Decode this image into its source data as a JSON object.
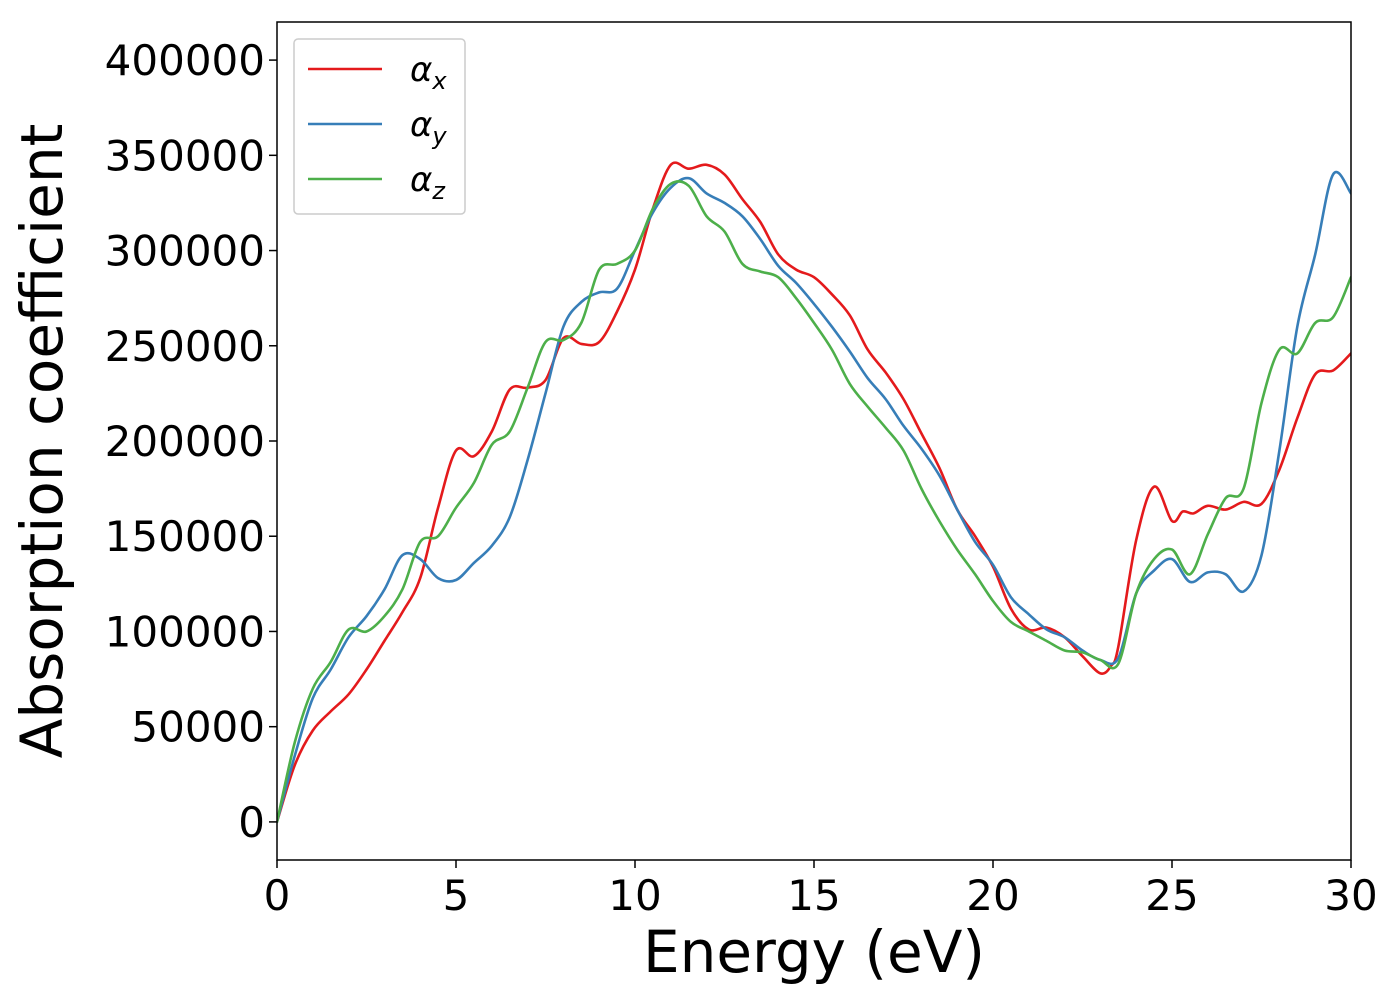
{
  "chart_data": {
    "type": "line",
    "title": "",
    "xlabel": "Energy (eV)",
    "ylabel": "Absorption coefficient",
    "xlim": [
      0,
      30
    ],
    "ylim": [
      -20000,
      420000
    ],
    "xticks": [
      0,
      5,
      10,
      15,
      20,
      25,
      30
    ],
    "yticks": [
      0,
      50000,
      100000,
      150000,
      200000,
      250000,
      300000,
      350000,
      400000
    ],
    "grid": false,
    "legend_position": "top-left",
    "series": [
      {
        "name": "αx",
        "legend_symbol": "α",
        "legend_subscript": "x",
        "color": "#e41a1c",
        "x": [
          0,
          0.5,
          1,
          1.5,
          2,
          2.5,
          3,
          3.5,
          4,
          4.5,
          5,
          5.5,
          6,
          6.5,
          7,
          7.5,
          8,
          8.5,
          9,
          9.5,
          10,
          10.5,
          11,
          11.5,
          12,
          12.5,
          13,
          13.5,
          14,
          14.5,
          15,
          15.5,
          16,
          16.5,
          17,
          17.5,
          18,
          18.5,
          19,
          19.5,
          20,
          20.5,
          21,
          21.5,
          22,
          22.5,
          23,
          23.3,
          23.5,
          24,
          24.5,
          25,
          25.3,
          25.6,
          26,
          26.5,
          27,
          27.5,
          28,
          28.5,
          29,
          29.5,
          30
        ],
        "y": [
          0,
          30000,
          48000,
          58000,
          67000,
          80000,
          95000,
          110000,
          128000,
          165000,
          195000,
          192000,
          205000,
          227000,
          228000,
          232000,
          254000,
          251000,
          252000,
          268000,
          290000,
          322000,
          345000,
          343000,
          345000,
          340000,
          327000,
          315000,
          298000,
          290000,
          286000,
          277000,
          266000,
          248000,
          236000,
          222000,
          204000,
          186000,
          164000,
          150000,
          134000,
          112000,
          101000,
          102000,
          97000,
          87000,
          78000,
          82000,
          92000,
          148000,
          176000,
          158000,
          163000,
          162000,
          166000,
          164000,
          168000,
          167000,
          185000,
          212000,
          235000,
          237000,
          246000
        ]
      },
      {
        "name": "αy",
        "legend_symbol": "α",
        "legend_subscript": "y",
        "color": "#377eb8",
        "x": [
          0,
          0.5,
          1,
          1.5,
          2,
          2.5,
          3,
          3.5,
          4,
          4.5,
          5,
          5.5,
          6,
          6.5,
          7,
          7.5,
          8,
          8.5,
          9,
          9.5,
          10,
          10.5,
          11,
          11.5,
          12,
          12.5,
          13,
          13.5,
          14,
          14.5,
          15,
          15.5,
          16,
          16.5,
          17,
          17.5,
          18,
          18.5,
          19,
          19.5,
          20,
          20.5,
          21,
          21.5,
          22,
          22.5,
          23,
          23.5,
          24,
          24.5,
          25,
          25.5,
          26,
          26.5,
          27,
          27.5,
          28,
          28.5,
          29,
          29.5,
          30
        ],
        "y": [
          0,
          35000,
          65000,
          80000,
          97000,
          108000,
          122000,
          140000,
          138000,
          128000,
          127000,
          136000,
          145000,
          160000,
          190000,
          225000,
          260000,
          273000,
          278000,
          280000,
          300000,
          320000,
          333000,
          338000,
          330000,
          325000,
          318000,
          306000,
          292000,
          283000,
          272000,
          260000,
          247000,
          233000,
          222000,
          208000,
          196000,
          182000,
          164000,
          147000,
          135000,
          118000,
          109000,
          101000,
          97000,
          90000,
          85000,
          86000,
          120000,
          132000,
          138000,
          126000,
          131000,
          130000,
          121000,
          140000,
          195000,
          260000,
          298000,
          340000,
          330000
        ]
      },
      {
        "name": "αz",
        "legend_symbol": "α",
        "legend_subscript": "z",
        "color": "#4daf4a",
        "x": [
          0,
          0.5,
          1,
          1.5,
          2,
          2.5,
          3,
          3.5,
          4,
          4.5,
          5,
          5.5,
          6,
          6.5,
          7,
          7.5,
          8,
          8.5,
          9,
          9.5,
          10,
          10.5,
          11,
          11.5,
          12,
          12.5,
          13,
          13.5,
          14,
          14.5,
          15,
          15.5,
          16,
          16.5,
          17,
          17.5,
          18,
          18.5,
          19,
          19.5,
          20,
          20.5,
          21,
          21.5,
          22,
          22.5,
          23,
          23.5,
          24,
          24.5,
          25,
          25.5,
          26,
          26.5,
          27,
          27.5,
          28,
          28.5,
          29,
          29.5,
          30
        ],
        "y": [
          0,
          42000,
          70000,
          84000,
          101000,
          100000,
          108000,
          122000,
          147000,
          150000,
          165000,
          178000,
          198000,
          205000,
          228000,
          252000,
          253000,
          262000,
          290000,
          293000,
          300000,
          322000,
          335000,
          334000,
          318000,
          310000,
          293000,
          289000,
          286000,
          275000,
          262000,
          248000,
          230000,
          218000,
          207000,
          195000,
          175000,
          158000,
          143000,
          130000,
          116000,
          105000,
          100000,
          95000,
          90000,
          89000,
          85000,
          83000,
          120000,
          138000,
          143000,
          130000,
          151000,
          170000,
          175000,
          220000,
          248000,
          246000,
          262000,
          265000,
          286000
        ]
      }
    ]
  }
}
